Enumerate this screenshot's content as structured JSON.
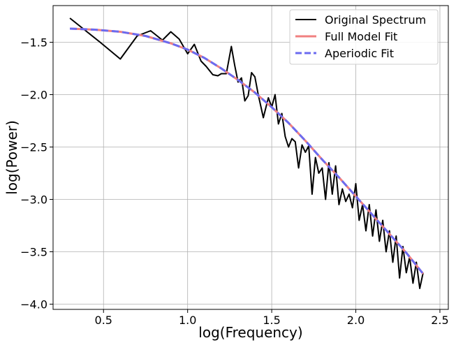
{
  "chart_data": {
    "type": "line",
    "title": "",
    "xlabel": "log(Frequency)",
    "ylabel": "log(Power)",
    "xlim": [
      0.2,
      2.55
    ],
    "ylim": [
      -4.05,
      -1.15
    ],
    "xticks": [
      0.5,
      1.0,
      1.5,
      2.0,
      2.5
    ],
    "xtick_labels": [
      "0.5",
      "1.0",
      "1.5",
      "2.0",
      "2.5"
    ],
    "yticks": [
      -1.5,
      -2.0,
      -2.5,
      -3.0,
      -3.5,
      -4.0
    ],
    "ytick_labels": [
      "−1.5",
      "−2.0",
      "−2.5",
      "−3.0",
      "−3.5",
      "−4.0"
    ],
    "grid": true,
    "legend_position": "top-right",
    "series": [
      {
        "name": "Original Spectrum",
        "color": "#000000",
        "style": "solid",
        "x": [
          0.3,
          0.48,
          0.6,
          0.7,
          0.78,
          0.85,
          0.9,
          0.95,
          1.0,
          1.04,
          1.08,
          1.11,
          1.15,
          1.18,
          1.2,
          1.23,
          1.26,
          1.28,
          1.3,
          1.32,
          1.34,
          1.36,
          1.38,
          1.4,
          1.42,
          1.45,
          1.48,
          1.5,
          1.52,
          1.54,
          1.56,
          1.58,
          1.6,
          1.62,
          1.64,
          1.66,
          1.68,
          1.7,
          1.72,
          1.74,
          1.76,
          1.78,
          1.8,
          1.82,
          1.84,
          1.86,
          1.88,
          1.9,
          1.92,
          1.94,
          1.96,
          1.98,
          2.0,
          2.02,
          2.04,
          2.06,
          2.08,
          2.1,
          2.12,
          2.14,
          2.16,
          2.18,
          2.2,
          2.22,
          2.24,
          2.26,
          2.28,
          2.3,
          2.32,
          2.34,
          2.36,
          2.38,
          2.4
        ],
        "y": [
          -1.27,
          -1.5,
          -1.66,
          -1.44,
          -1.39,
          -1.48,
          -1.4,
          -1.47,
          -1.61,
          -1.52,
          -1.68,
          -1.73,
          -1.81,
          -1.82,
          -1.8,
          -1.8,
          -1.54,
          -1.72,
          -1.88,
          -1.84,
          -2.06,
          -2.01,
          -1.79,
          -1.83,
          -2.0,
          -2.22,
          -2.03,
          -2.12,
          -2.0,
          -2.28,
          -2.18,
          -2.4,
          -2.5,
          -2.42,
          -2.45,
          -2.7,
          -2.48,
          -2.55,
          -2.49,
          -2.95,
          -2.6,
          -2.75,
          -2.7,
          -3.0,
          -2.65,
          -2.95,
          -2.68,
          -3.05,
          -2.9,
          -3.02,
          -2.95,
          -3.08,
          -2.85,
          -3.2,
          -3.05,
          -3.3,
          -3.05,
          -3.35,
          -3.1,
          -3.4,
          -3.2,
          -3.5,
          -3.3,
          -3.6,
          -3.35,
          -3.75,
          -3.45,
          -3.7,
          -3.55,
          -3.8,
          -3.6,
          -3.85,
          -3.7
        ]
      },
      {
        "name": "Full Model Fit",
        "color": "#f08080",
        "style": "solid",
        "x": [
          0.3,
          0.45,
          0.6,
          0.75,
          0.9,
          1.0,
          1.1,
          1.2,
          1.3,
          1.4,
          1.5,
          1.6,
          1.7,
          1.8,
          1.9,
          2.0,
          2.1,
          2.2,
          2.3,
          2.4
        ],
        "y": [
          -1.37,
          -1.38,
          -1.4,
          -1.44,
          -1.51,
          -1.57,
          -1.65,
          -1.75,
          -1.86,
          -1.98,
          -2.12,
          -2.27,
          -2.44,
          -2.62,
          -2.79,
          -2.97,
          -3.15,
          -3.33,
          -3.51,
          -3.71
        ]
      },
      {
        "name": "Aperiodic Fit",
        "color": "#6b6bf0",
        "style": "dashed",
        "x": [
          0.3,
          0.45,
          0.6,
          0.75,
          0.9,
          1.0,
          1.1,
          1.2,
          1.3,
          1.4,
          1.5,
          1.6,
          1.7,
          1.8,
          1.9,
          2.0,
          2.1,
          2.2,
          2.3,
          2.4
        ],
        "y": [
          -1.37,
          -1.38,
          -1.4,
          -1.44,
          -1.51,
          -1.57,
          -1.65,
          -1.75,
          -1.86,
          -1.98,
          -2.12,
          -2.27,
          -2.44,
          -2.62,
          -2.79,
          -2.97,
          -3.15,
          -3.33,
          -3.51,
          -3.71
        ]
      }
    ]
  }
}
